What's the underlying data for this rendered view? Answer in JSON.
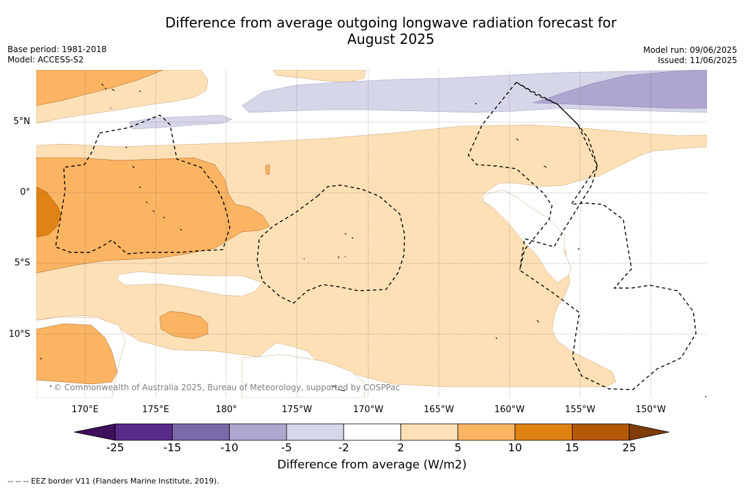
{
  "title": {
    "line1": "Difference from average outgoing longwave radiation forecast for",
    "line2": "August 2025"
  },
  "meta": {
    "base_period": "Base period: 1981-2018",
    "model": "Model: ACCESS-S2",
    "model_run": "Model run: 09/06/2025",
    "issued": "Issued: 11/06/2025"
  },
  "map": {
    "latitude_labels": [
      "5°N",
      "0°",
      "5°S",
      "10°S"
    ],
    "longitude_labels": [
      "170°E",
      "175°E",
      "180°",
      "175°W",
      "170°W",
      "165°W",
      "160°W",
      "155°W",
      "150°W"
    ],
    "credit": "© Commonwealth of Australia 2025, Bureau of Meteorology, supported by COSPPac"
  },
  "colorbar": {
    "ticks": [
      "-25",
      "-15",
      "-10",
      "-5",
      "-2",
      "2",
      "5",
      "10",
      "15",
      "25"
    ],
    "colors": [
      "#3f0f5b",
      "#5a2a8b",
      "#7a6aaa",
      "#aea6cf",
      "#d6d6e9",
      "#ffffff",
      "#fde0b6",
      "#fbb462",
      "#e08214",
      "#b35806",
      "#7f3b08"
    ],
    "label": "Difference from average (W/m2)"
  },
  "legend_note": "--  --  -- EEZ border V11 (Flanders Marine Institute, 2019)."
}
